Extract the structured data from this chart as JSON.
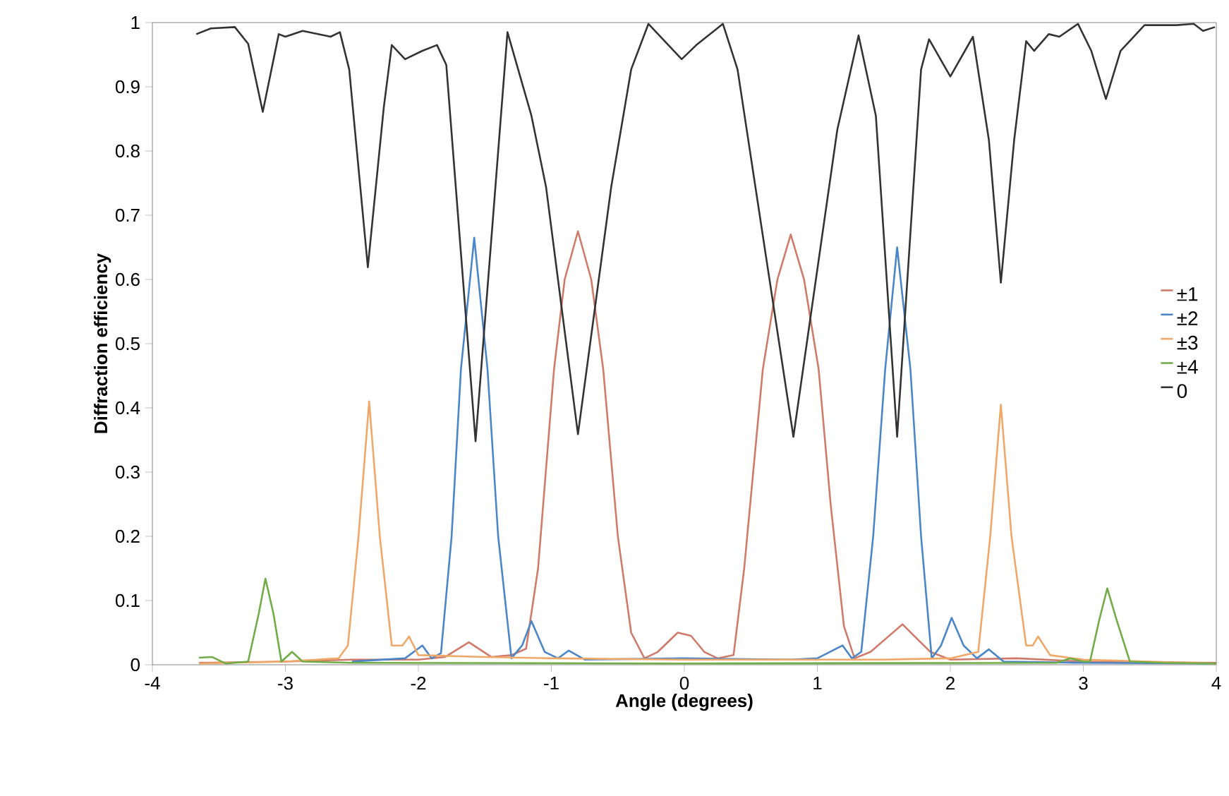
{
  "chart_data": {
    "type": "line",
    "xlabel": "Angle (degrees)",
    "ylabel": "Diffraction efficiency",
    "xlim": [
      -4,
      4
    ],
    "xticks": [
      -4,
      -3,
      -2,
      -1,
      0,
      1,
      2,
      3,
      4
    ],
    "ylim": [
      0,
      1
    ],
    "yticks": [
      0,
      0.1,
      0.2,
      0.3,
      0.4,
      0.5,
      0.6,
      0.7,
      0.8,
      0.9,
      1
    ],
    "grid": false,
    "legend": "right",
    "series": [
      {
        "name": "±1",
        "color": "#d07a6a",
        "x": [
          -3.65,
          -3.0,
          -2.5,
          -2.0,
          -1.8,
          -1.62,
          -1.45,
          -1.3,
          -1.19,
          -1.1,
          -0.98,
          -0.9,
          -0.8,
          -0.7,
          -0.61,
          -0.5,
          -0.4,
          -0.3,
          -0.2,
          -0.05,
          0.05,
          0.15,
          0.25,
          0.37,
          0.45,
          0.59,
          0.7,
          0.8,
          0.9,
          1.01,
          1.1,
          1.2,
          1.28,
          1.4,
          1.64,
          1.85,
          2.0,
          2.5,
          3.0,
          4.0
        ],
        "values": [
          0.003,
          0.005,
          0.008,
          0.008,
          0.012,
          0.035,
          0.012,
          0.015,
          0.025,
          0.15,
          0.46,
          0.6,
          0.675,
          0.6,
          0.46,
          0.2,
          0.05,
          0.01,
          0.02,
          0.05,
          0.045,
          0.02,
          0.01,
          0.015,
          0.15,
          0.46,
          0.6,
          0.67,
          0.6,
          0.46,
          0.25,
          0.06,
          0.01,
          0.02,
          0.063,
          0.02,
          0.008,
          0.01,
          0.005,
          0.003
        ]
      },
      {
        "name": "±2",
        "color": "#4a86c8",
        "x": [
          -2.5,
          -2.1,
          -1.97,
          -1.9,
          -1.83,
          -1.75,
          -1.68,
          -1.58,
          -1.48,
          -1.4,
          -1.3,
          -1.22,
          -1.15,
          -1.05,
          -0.95,
          -0.87,
          -0.75,
          0,
          0.8,
          1.0,
          1.19,
          1.26,
          1.33,
          1.42,
          1.51,
          1.6,
          1.7,
          1.78,
          1.86,
          1.93,
          2.01,
          2.1,
          2.2,
          2.29,
          2.4,
          3.0,
          4.0
        ],
        "values": [
          0.005,
          0.01,
          0.03,
          0.01,
          0.018,
          0.2,
          0.46,
          0.665,
          0.46,
          0.2,
          0.01,
          0.03,
          0.068,
          0.02,
          0.01,
          0.022,
          0.008,
          0.01,
          0.008,
          0.01,
          0.03,
          0.01,
          0.02,
          0.2,
          0.46,
          0.65,
          0.46,
          0.2,
          0.01,
          0.03,
          0.073,
          0.03,
          0.01,
          0.024,
          0.005,
          0.003,
          0.002
        ]
      },
      {
        "name": "±3",
        "color": "#f0a868",
        "x": [
          -3.65,
          -3.0,
          -2.6,
          -2.53,
          -2.45,
          -2.37,
          -2.29,
          -2.2,
          -2.12,
          -2.07,
          -2.0,
          -1.5,
          -1.0,
          0,
          1.0,
          1.5,
          2.0,
          2.21,
          2.3,
          2.38,
          2.46,
          2.57,
          2.62,
          2.66,
          2.75,
          3.0,
          3.5,
          4.0
        ],
        "values": [
          0.002,
          0.005,
          0.01,
          0.03,
          0.2,
          0.41,
          0.2,
          0.03,
          0.03,
          0.044,
          0.015,
          0.012,
          0.01,
          0.008,
          0.008,
          0.008,
          0.01,
          0.02,
          0.2,
          0.405,
          0.2,
          0.03,
          0.03,
          0.044,
          0.015,
          0.008,
          0.005,
          0.002
        ]
      },
      {
        "name": "±4",
        "color": "#70ad47",
        "x": [
          -3.65,
          -3.55,
          -3.45,
          -3.28,
          -3.2,
          -3.15,
          -3.09,
          -3.03,
          -2.95,
          -2.87,
          -2.5,
          0,
          2.8,
          2.9,
          3.0,
          3.05,
          3.12,
          3.18,
          3.25,
          3.35,
          3.6,
          4.0
        ],
        "values": [
          0.011,
          0.012,
          0.002,
          0.005,
          0.08,
          0.134,
          0.08,
          0.005,
          0.02,
          0.005,
          0.003,
          0.002,
          0.003,
          0.01,
          0.005,
          0.005,
          0.07,
          0.119,
          0.07,
          0.005,
          0.003,
          0.002
        ]
      },
      {
        "name": "0",
        "color": "#333333",
        "x": [
          -3.67,
          -3.56,
          -3.38,
          -3.28,
          -3.17,
          -3.05,
          -3.0,
          -2.87,
          -2.66,
          -2.59,
          -2.52,
          -2.38,
          -2.26,
          -2.2,
          -2.1,
          -1.97,
          -1.86,
          -1.79,
          -1.57,
          -1.33,
          -1.15,
          -1.04,
          -0.8,
          -0.55,
          -0.4,
          -0.27,
          -0.02,
          0.09,
          0.29,
          0.4,
          0.82,
          1.15,
          1.31,
          1.44,
          1.6,
          1.78,
          1.84,
          2.0,
          2.17,
          2.29,
          2.38,
          2.48,
          2.57,
          2.63,
          2.74,
          2.82,
          2.96,
          3.06,
          3.17,
          3.28,
          3.46,
          3.7,
          3.83,
          3.9,
          3.99
        ],
        "values": [
          0.982,
          0.991,
          0.993,
          0.967,
          0.861,
          0.982,
          0.978,
          0.987,
          0.978,
          0.985,
          0.927,
          0.619,
          0.868,
          0.965,
          0.943,
          0.956,
          0.965,
          0.934,
          0.348,
          0.985,
          0.855,
          0.744,
          0.359,
          0.744,
          0.927,
          0.998,
          0.943,
          0.965,
          0.998,
          0.927,
          0.355,
          0.833,
          0.98,
          0.855,
          0.355,
          0.927,
          0.974,
          0.916,
          0.978,
          0.817,
          0.595,
          0.817,
          0.971,
          0.956,
          0.982,
          0.978,
          0.998,
          0.956,
          0.881,
          0.956,
          0.996,
          0.996,
          0.998,
          0.987,
          0.993
        ]
      }
    ]
  }
}
